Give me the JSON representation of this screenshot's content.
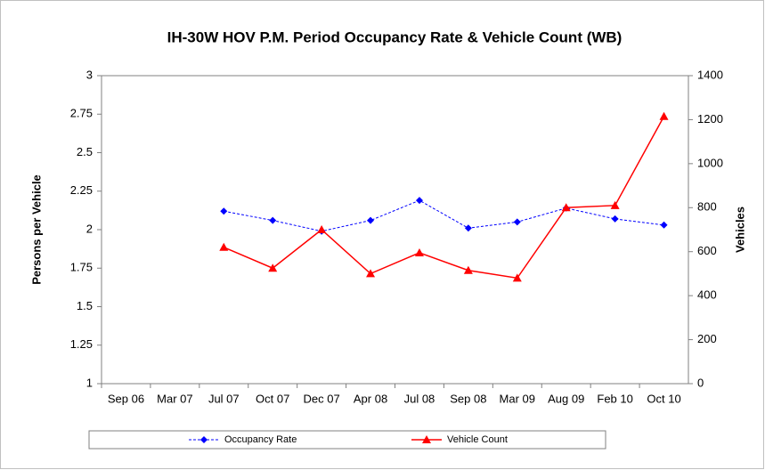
{
  "chart_data": {
    "type": "line",
    "title": "IH-30W HOV P.M. Period Occupancy Rate & Vehicle Count (WB)",
    "y_label": "Persons per Vehicle",
    "y2_label": "Vehicles",
    "categories": [
      "Sep 06",
      "Mar 07",
      "Jul 07",
      "Oct 07",
      "Dec 07",
      "Apr 08",
      "Jul 08",
      "Sep 08",
      "Mar 09",
      "Aug 09",
      "Feb 10",
      "Oct 10"
    ],
    "series": [
      {
        "name": "Occupancy Rate",
        "color": "#0000ff",
        "marker": "diamond",
        "dash": true,
        "values": [
          null,
          null,
          2.12,
          2.06,
          1.99,
          2.06,
          2.19,
          2.01,
          2.05,
          2.14,
          2.07,
          2.03
        ]
      },
      {
        "name": "Vehicle Count",
        "color": "#ff0000",
        "marker": "triangle",
        "dash": false,
        "axis": "y2",
        "values": [
          null,
          null,
          620,
          525,
          700,
          500,
          595,
          515,
          480,
          800,
          810,
          1215
        ]
      }
    ],
    "ylim": [
      1,
      3
    ],
    "yticks": [
      1,
      1.25,
      1.5,
      1.75,
      2,
      2.25,
      2.5,
      2.75,
      3
    ],
    "y2lim": [
      0,
      1400
    ],
    "y2ticks": [
      0,
      200,
      400,
      600,
      800,
      1000,
      1200,
      1400
    ],
    "grid": false,
    "legend": "bottom"
  }
}
